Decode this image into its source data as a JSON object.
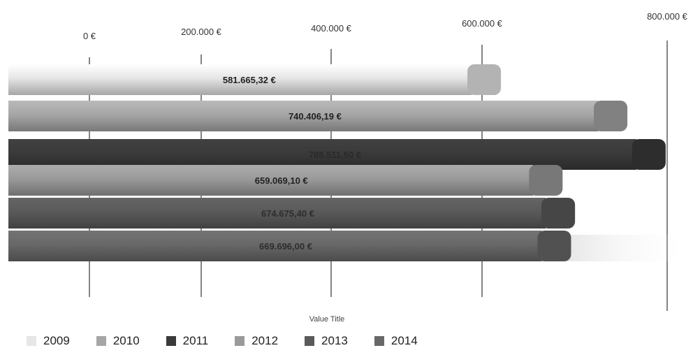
{
  "chart_data": {
    "type": "bar",
    "orientation": "horizontal",
    "categories": [
      "2009",
      "2010",
      "2011",
      "2012",
      "2013",
      "2014"
    ],
    "values": [
      581665.32,
      740406.19,
      788511.5,
      659069.1,
      674675.4,
      669696.0
    ],
    "data_labels": [
      "581.665,32 €",
      "740.406,19 €",
      "788.511,50 €",
      "659.069,10 €",
      "674.675,40 €",
      "669.696,00 €"
    ],
    "xlim": [
      0,
      800000
    ],
    "ticks": [
      {
        "value": 0,
        "label": "0 €"
      },
      {
        "value": 200000,
        "label": "200.000 €"
      },
      {
        "value": 400000,
        "label": "400.000 €"
      },
      {
        "value": 600000,
        "label": "600.000 €"
      },
      {
        "value": 800000,
        "label": "800.000 €"
      }
    ],
    "xlabel": "Value Title",
    "legend_position": "bottom-left",
    "colors": [
      "#e6e6e6",
      "#a6a6a6",
      "#3a3a3a",
      "#9a9a9a",
      "#5a5a5a",
      "#686868"
    ]
  }
}
